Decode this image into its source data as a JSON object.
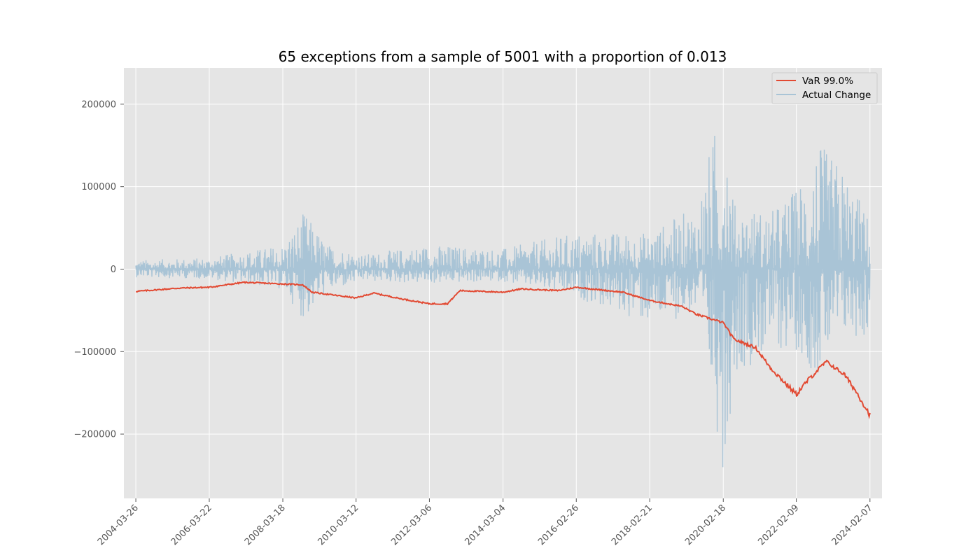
{
  "chart_data": {
    "type": "line",
    "title": "65 exceptions from a sample of 5001 with a proportion of 0.013",
    "xlabel": "",
    "ylabel": "",
    "x_range": [
      "2003-11-29",
      "2024-06-05"
    ],
    "ylim": [
      -278000,
      244000
    ],
    "grid": true,
    "background": "#e5e5e5",
    "legend_position": "top-right",
    "x_ticks": [
      "2004-03-26",
      "2006-03-22",
      "2008-03-18",
      "2010-03-12",
      "2012-03-06",
      "2014-03-04",
      "2016-02-26",
      "2018-02-21",
      "2020-02-18",
      "2022-02-09",
      "2024-02-07"
    ],
    "y_ticks": [
      {
        "value": 200000,
        "label": "200000"
      },
      {
        "value": 100000,
        "label": "100000"
      },
      {
        "value": 0,
        "label": "0"
      },
      {
        "value": -100000,
        "label": "−100000"
      },
      {
        "value": -200000,
        "label": "−200000"
      }
    ],
    "series": [
      {
        "name": "Actual Change",
        "color": "#a9c4d6",
        "kind": "noisy-band",
        "envelope": [
          {
            "x": "2004-03-26",
            "y_low": -10000,
            "y_high": 11000
          },
          {
            "x": "2006-03-22",
            "y_low": -12000,
            "y_high": 14000
          },
          {
            "x": "2008-03-18",
            "y_low": -25000,
            "y_high": 30000
          },
          {
            "x": "2008-10-15",
            "y_low": -63000,
            "y_high": 70000
          },
          {
            "x": "2009-06-01",
            "y_low": -28000,
            "y_high": 30000
          },
          {
            "x": "2010-06-01",
            "y_low": -15000,
            "y_high": 18000
          },
          {
            "x": "2012-03-06",
            "y_low": -18000,
            "y_high": 30000
          },
          {
            "x": "2014-03-04",
            "y_low": -15000,
            "y_high": 25000
          },
          {
            "x": "2016-02-26",
            "y_low": -35000,
            "y_high": 45000
          },
          {
            "x": "2018-02-21",
            "y_low": -68000,
            "y_high": 45000
          },
          {
            "x": "2019-06-01",
            "y_low": -55000,
            "y_high": 78000
          },
          {
            "x": "2020-03-01",
            "y_low": -253000,
            "y_high": 222000
          },
          {
            "x": "2020-06-01",
            "y_low": -130000,
            "y_high": 80000
          },
          {
            "x": "2021-06-01",
            "y_low": -100000,
            "y_high": 70000
          },
          {
            "x": "2022-02-09",
            "y_low": -100000,
            "y_high": 100000
          },
          {
            "x": "2022-09-01",
            "y_low": -130000,
            "y_high": 154000
          },
          {
            "x": "2023-06-01",
            "y_low": -85000,
            "y_high": 125000
          },
          {
            "x": "2024-02-07",
            "y_low": -85000,
            "y_high": 60000
          }
        ]
      },
      {
        "name": "VaR 99.0%",
        "color": "#e24a33",
        "points": [
          {
            "x": "2004-03-26",
            "y": -27000
          },
          {
            "x": "2005-06-01",
            "y": -23000
          },
          {
            "x": "2006-03-22",
            "y": -22000
          },
          {
            "x": "2007-03-01",
            "y": -16000
          },
          {
            "x": "2008-03-18",
            "y": -18000
          },
          {
            "x": "2008-10-01",
            "y": -19000
          },
          {
            "x": "2009-01-01",
            "y": -28000
          },
          {
            "x": "2010-03-12",
            "y": -35000
          },
          {
            "x": "2010-09-01",
            "y": -29000
          },
          {
            "x": "2011-06-01",
            "y": -36000
          },
          {
            "x": "2012-03-06",
            "y": -42000
          },
          {
            "x": "2012-09-01",
            "y": -42000
          },
          {
            "x": "2013-01-01",
            "y": -26000
          },
          {
            "x": "2014-03-04",
            "y": -28000
          },
          {
            "x": "2014-09-01",
            "y": -24000
          },
          {
            "x": "2015-09-01",
            "y": -26000
          },
          {
            "x": "2016-02-26",
            "y": -22000
          },
          {
            "x": "2017-06-01",
            "y": -28000
          },
          {
            "x": "2018-02-21",
            "y": -38000
          },
          {
            "x": "2019-01-01",
            "y": -45000
          },
          {
            "x": "2019-06-01",
            "y": -55000
          },
          {
            "x": "2020-02-18",
            "y": -65000
          },
          {
            "x": "2020-06-01",
            "y": -85000
          },
          {
            "x": "2021-01-01",
            "y": -95000
          },
          {
            "x": "2021-06-01",
            "y": -120000
          },
          {
            "x": "2022-02-09",
            "y": -152000
          },
          {
            "x": "2022-06-01",
            "y": -135000
          },
          {
            "x": "2022-12-01",
            "y": -112000
          },
          {
            "x": "2023-06-01",
            "y": -128000
          },
          {
            "x": "2023-10-01",
            "y": -150000
          },
          {
            "x": "2024-02-07",
            "y": -177000
          }
        ]
      }
    ]
  }
}
